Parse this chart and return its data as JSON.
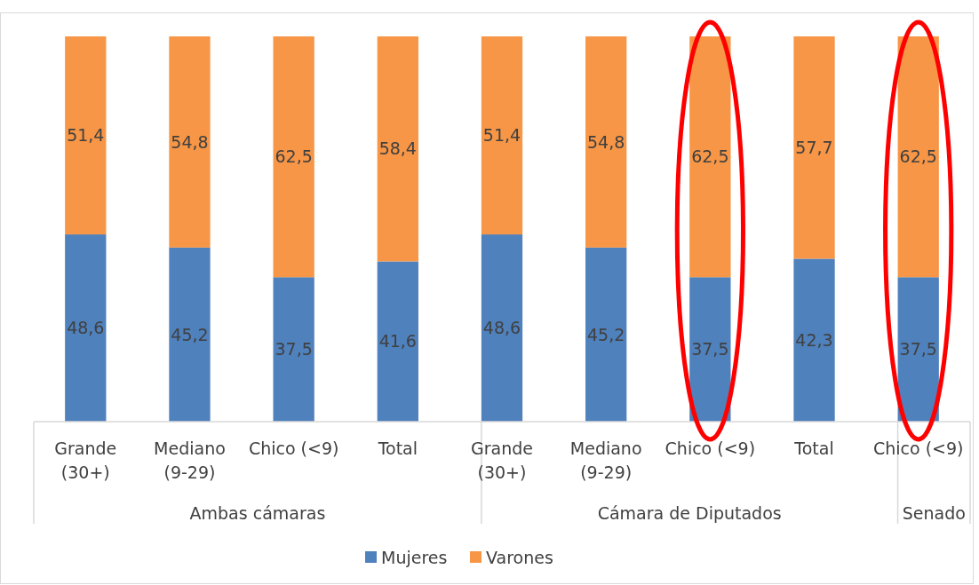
{
  "chart_data": {
    "type": "bar",
    "stacked": true,
    "categories": [
      "Grande (30+)",
      "Mediano (9-29)",
      "Chico (<9)",
      "Total",
      "Grande (30+)",
      "Mediano (9-29)",
      "Chico (<9)",
      "Total",
      "Chico (<9)"
    ],
    "series": [
      {
        "name": "Mujeres",
        "color": "#4f81bd",
        "values": [
          48.6,
          45.2,
          37.5,
          41.6,
          48.6,
          45.2,
          37.5,
          42.3,
          37.5
        ],
        "value_labels": [
          "48,6",
          "45,2",
          "37,5",
          "41,6",
          "48,6",
          "45,2",
          "37,5",
          "42,3",
          "37,5"
        ]
      },
      {
        "name": "Varones",
        "color": "#f79646",
        "values": [
          51.4,
          54.8,
          62.5,
          58.4,
          51.4,
          54.8,
          62.5,
          57.7,
          62.5
        ],
        "value_labels": [
          "51,4",
          "54,8",
          "62,5",
          "58,4",
          "51,4",
          "54,8",
          "62,5",
          "57,7",
          "62,5"
        ]
      }
    ],
    "legend": "bottom",
    "annotations": [
      "Ambas cámaras",
      "Cámara de Diputados",
      "Senado"
    ]
  }
}
